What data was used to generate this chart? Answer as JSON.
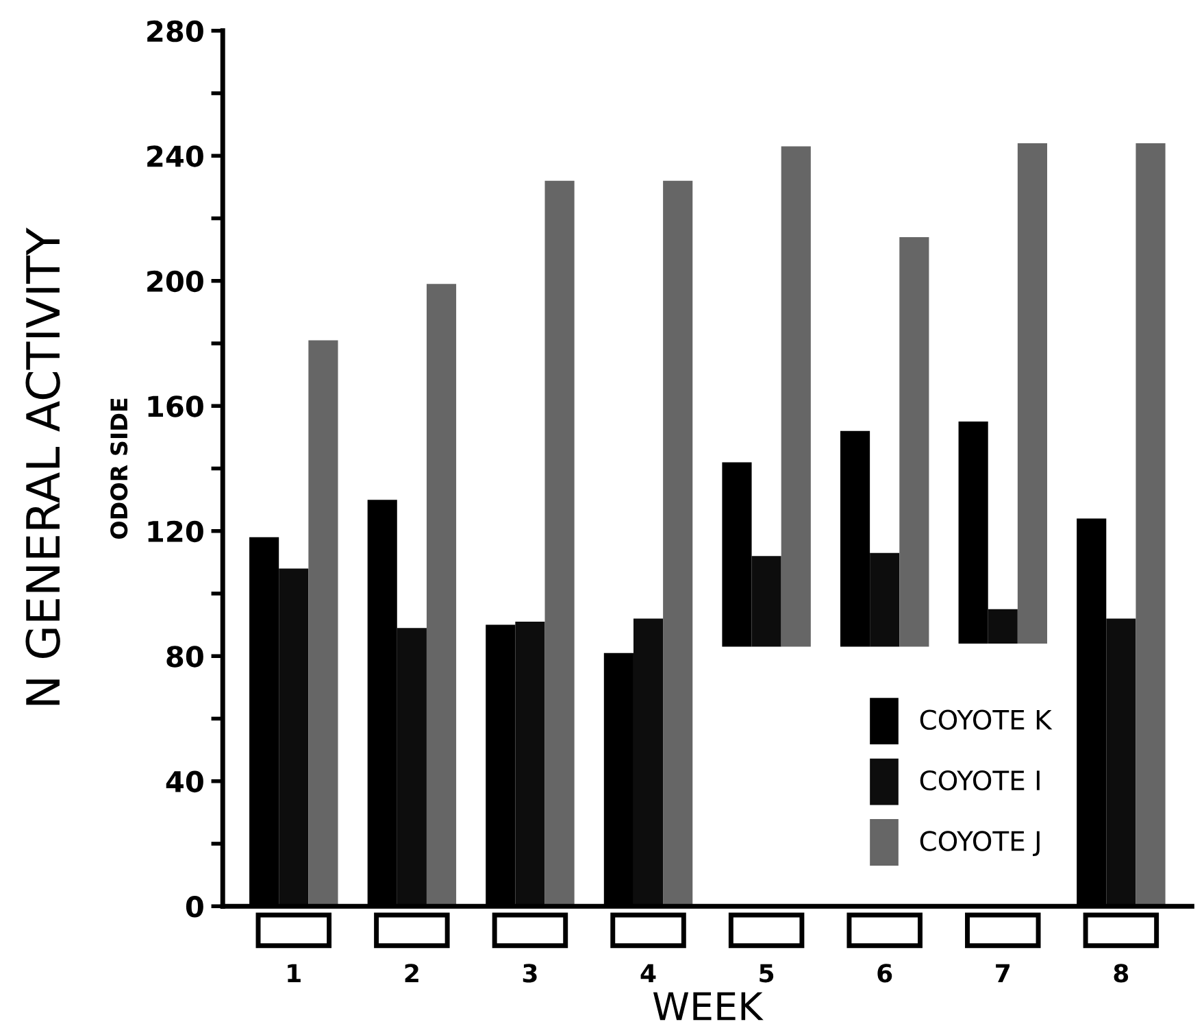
{
  "chart_data": {
    "type": "bar",
    "xlabel": "WEEK",
    "ylabel": "N GENERAL ACTIVITY",
    "annotations": [
      "ODOR SIDE"
    ],
    "categories": [
      "1",
      "2",
      "3",
      "4",
      "5",
      "6",
      "7",
      "8"
    ],
    "series": [
      {
        "name": "COYOTE K",
        "color": "#000000",
        "base": [
          0,
          0,
          0,
          0,
          83,
          83,
          84,
          0
        ],
        "values": [
          118,
          130,
          90,
          81,
          59,
          69,
          71,
          124
        ]
      },
      {
        "name": "COYOTE I",
        "color": "#0d0d0d",
        "base": [
          0,
          0,
          0,
          0,
          83,
          83,
          84,
          0
        ],
        "values": [
          108,
          89,
          91,
          92,
          29,
          30,
          11,
          92
        ]
      },
      {
        "name": "COYOTE J",
        "color": "#666666",
        "base": [
          0,
          0,
          0,
          0,
          83,
          83,
          84,
          0
        ],
        "values": [
          181,
          199,
          232,
          232,
          160,
          131,
          160,
          244
        ]
      }
    ],
    "ylim": [
      0,
      280
    ],
    "yticks": [
      0,
      {
        "value": 20,
        "label": null
      },
      40,
      {
        "value": 60,
        "label": null
      },
      80,
      {
        "value": 100,
        "label": null
      },
      120,
      {
        "value": 140,
        "label": null
      },
      160,
      {
        "value": 180,
        "label": null
      },
      200,
      {
        "value": 220,
        "label": null
      },
      240,
      {
        "value": 260,
        "label": null
      },
      280
    ],
    "grid": false,
    "legend": "bottom right"
  }
}
